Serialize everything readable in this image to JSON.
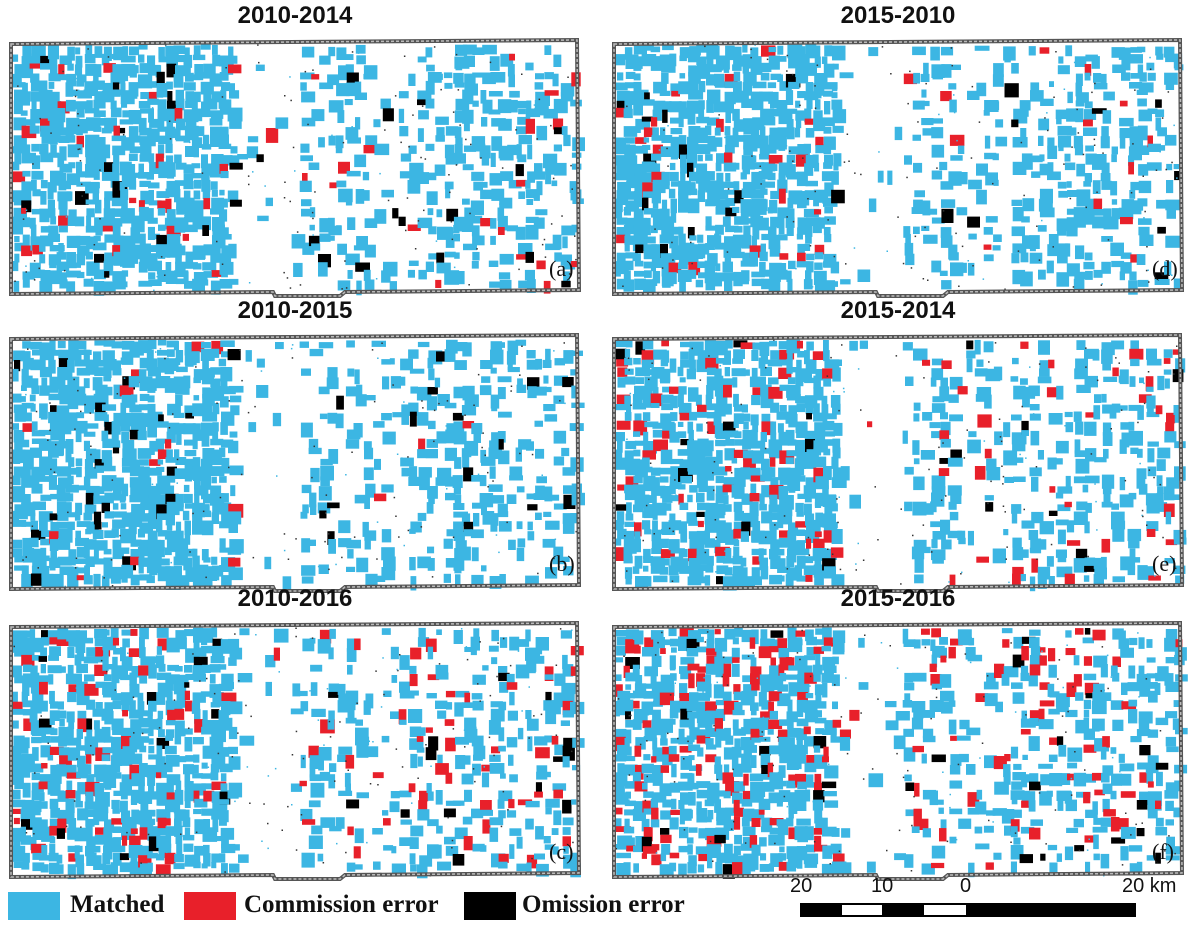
{
  "panels": [
    {
      "title": "2010-2014",
      "label": "(a)",
      "seed": 11,
      "commission": 0.045,
      "omission": 0.03
    },
    {
      "title": "2010-2015",
      "label": "(b)",
      "seed": 23,
      "commission": 0.02,
      "omission": 0.045
    },
    {
      "title": "2010-2016",
      "label": "(c)",
      "seed": 37,
      "commission": 0.12,
      "omission": 0.035
    },
    {
      "title": "2015-2010",
      "label": "(d)",
      "seed": 41,
      "commission": 0.06,
      "omission": 0.035
    },
    {
      "title": "2015-2014",
      "label": "(e)",
      "seed": 53,
      "commission": 0.11,
      "omission": 0.025
    },
    {
      "title": "2015-2016",
      "label": "(f)",
      "seed": 67,
      "commission": 0.18,
      "omission": 0.03
    }
  ],
  "legend": {
    "items": [
      {
        "label": "Matched",
        "color": "#3cb6e3"
      },
      {
        "label": "Commission error",
        "color": "#e8202a"
      },
      {
        "label": "Omission error",
        "color": "#000000"
      }
    ]
  },
  "scalebar": {
    "labels": [
      "20",
      "10",
      "0",
      "20 km"
    ]
  }
}
